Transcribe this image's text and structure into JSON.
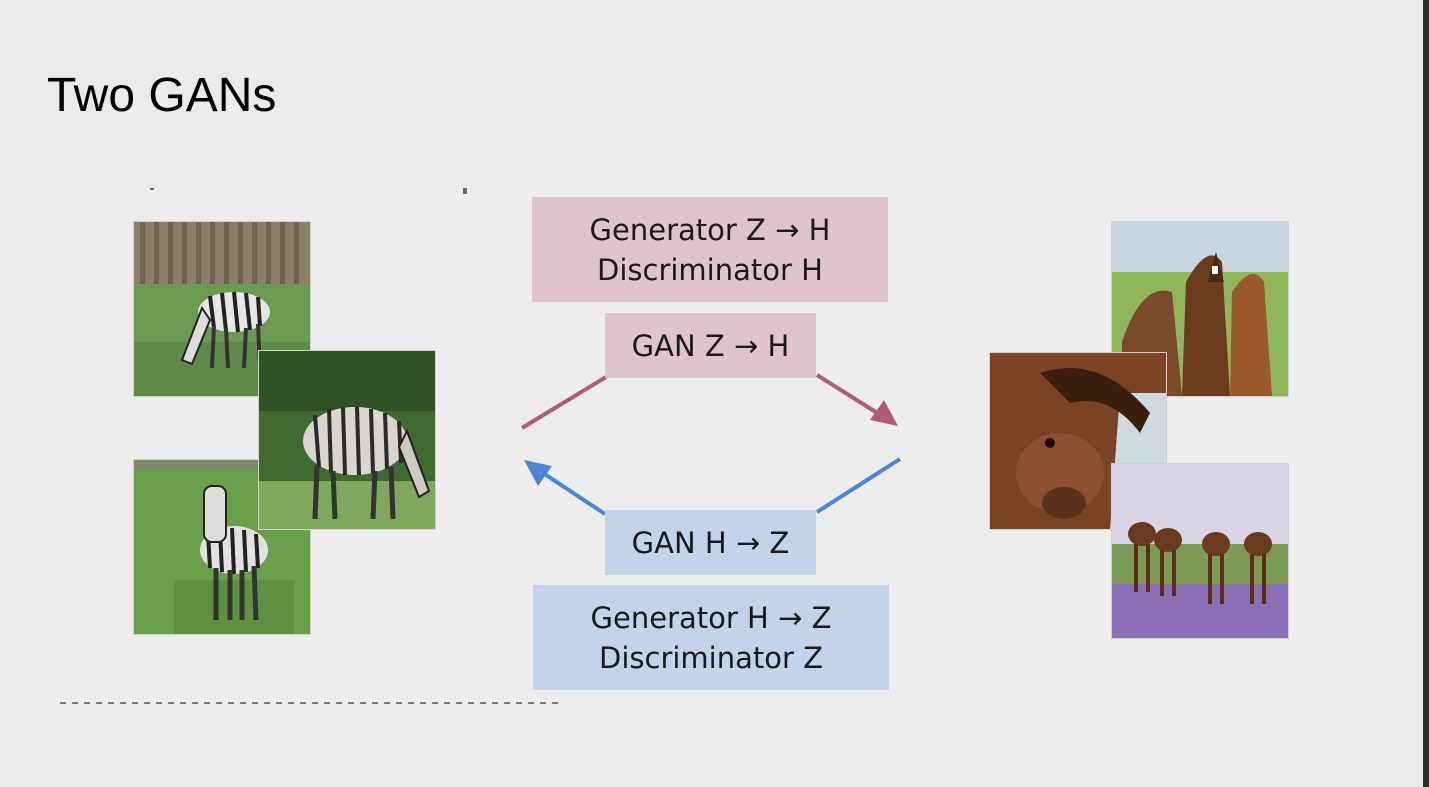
{
  "slide": {
    "title": "Two GANs"
  },
  "diagram": {
    "forward": {
      "components_line1": "Generator Z → H",
      "components_line2": "Discriminator H",
      "gan_label": "GAN Z → H",
      "color": "#b05a7a",
      "box_color": "#dec4cd"
    },
    "backward": {
      "components_line1": "Generator H → Z",
      "components_line2": "Discriminator Z",
      "gan_label": "GAN H → Z",
      "color": "#4a86d4",
      "box_color": "#c3d3e9"
    },
    "left_group": {
      "icon": "zebra-photo",
      "count": 3
    },
    "right_group": {
      "icon": "horse-photo",
      "count": 3
    }
  }
}
